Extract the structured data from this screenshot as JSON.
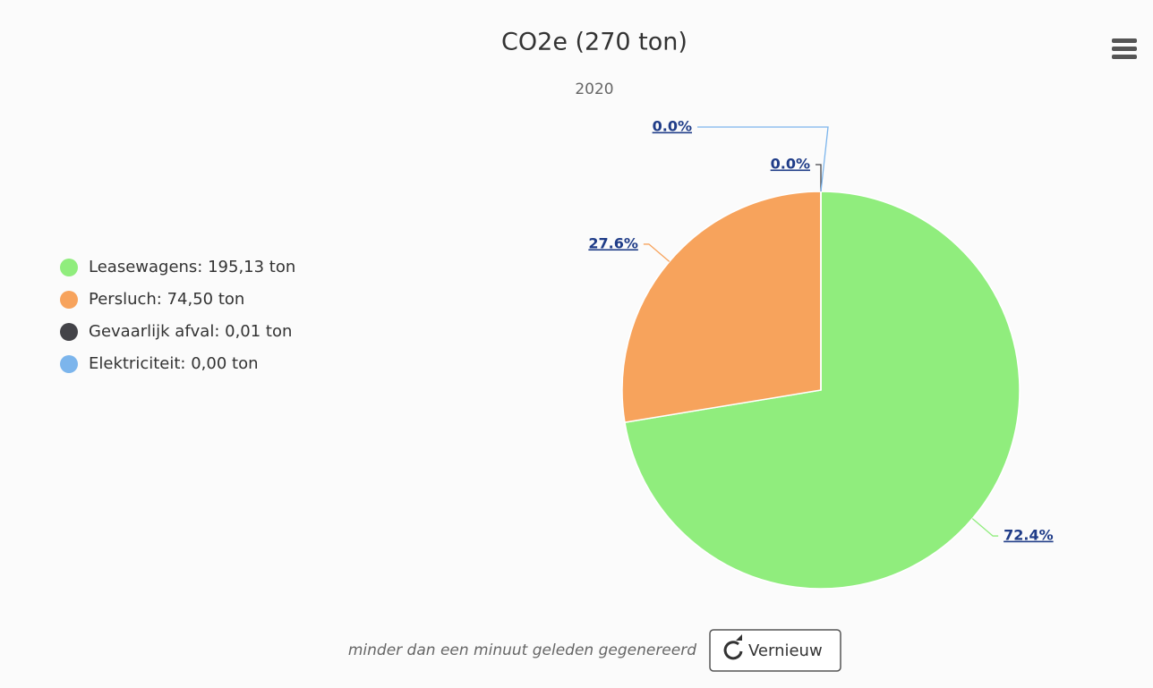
{
  "chart_data": {
    "type": "pie",
    "title": "CO2e (270 ton)",
    "subtitle": "2020",
    "categories": [
      "Leasewagens: 195,13 ton",
      "Persluch: 74,50 ton",
      "Gevaarlijk afval: 0,01 ton",
      "Elektriciteit: 0,00 ton"
    ],
    "values": [
      72.4,
      27.6,
      0.0,
      0.0
    ],
    "value_labels": [
      "72.4%",
      "27.6%",
      "0.0%",
      "0.0%"
    ],
    "colors": [
      "#90ed7d",
      "#f7a35c",
      "#434348",
      "#7cb5ec"
    ],
    "legend": "left"
  },
  "footer": {
    "note": "minder dan een minuut geleden gegenereerd",
    "button": "Vernieuw"
  }
}
